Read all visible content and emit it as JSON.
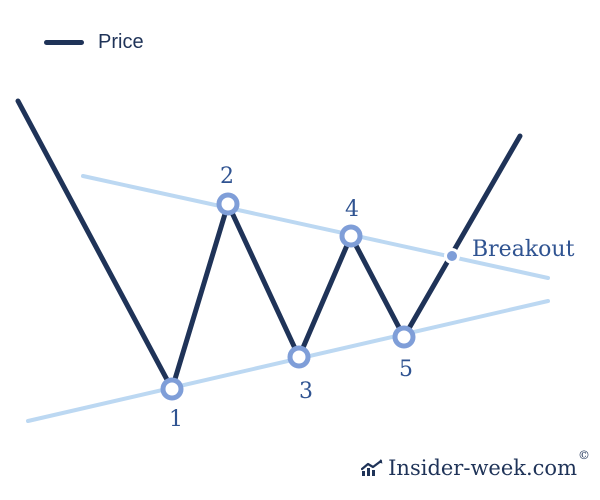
{
  "legend": {
    "label": "Price"
  },
  "points": [
    {
      "label": "1"
    },
    {
      "label": "2"
    },
    {
      "label": "3"
    },
    {
      "label": "4"
    },
    {
      "label": "5"
    }
  ],
  "breakout": {
    "label": "Breakout"
  },
  "watermark": {
    "text": "Insider-week.com",
    "symbol": "©"
  },
  "colors": {
    "price_line": "#1f3358",
    "trend_lines": "#bcd8f2",
    "markers": "#7f9ed8",
    "labels": "#2f5391"
  },
  "icons": {
    "watermark": "chart-trend-icon"
  }
}
